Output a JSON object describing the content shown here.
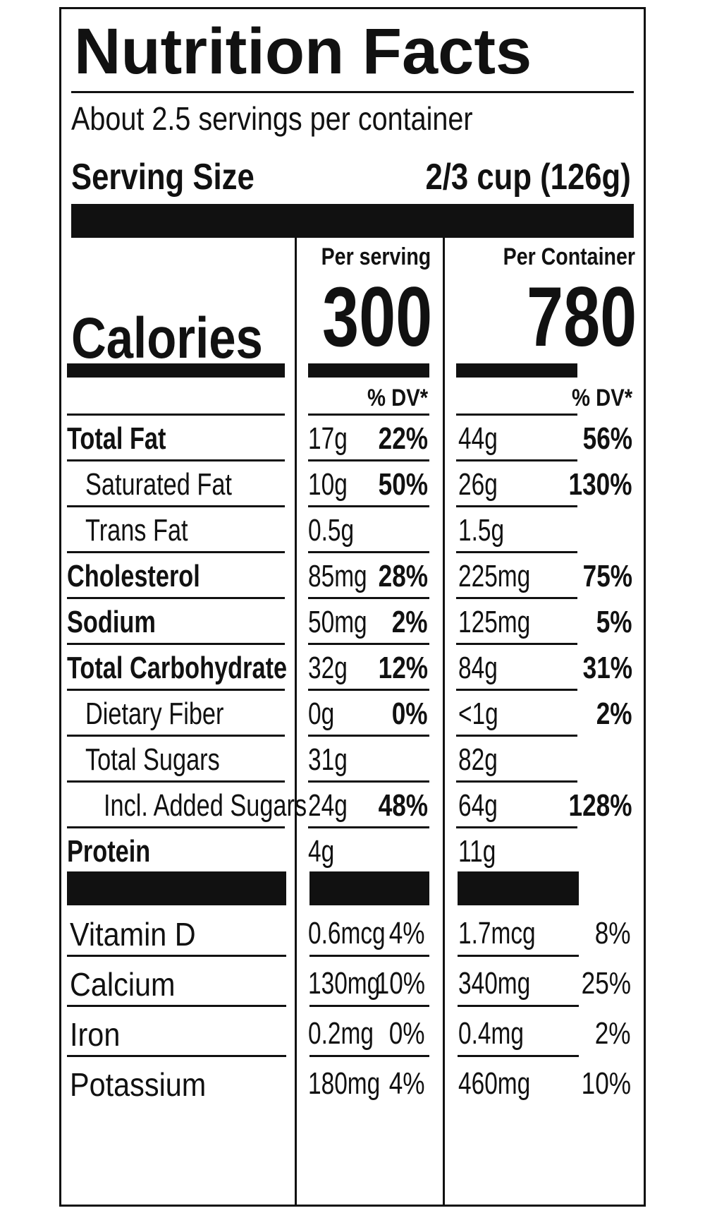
{
  "title": "Nutrition Facts",
  "servings_per_container": "About 2.5 servings per container",
  "serving_size": {
    "label": "Serving Size",
    "value": "2/3 cup (126g)"
  },
  "columns": {
    "per_serving": "Per serving",
    "per_container": "Per Container",
    "dv": "% DV*"
  },
  "calories": {
    "label": "Calories",
    "per_serving": "300",
    "per_container": "780"
  },
  "nutrients": [
    {
      "label": "Total Fat",
      "bold": true,
      "indent": 0,
      "serv_amt": "17g",
      "serv_dv": "22%",
      "cont_amt": "44g",
      "cont_dv": "56%"
    },
    {
      "label": "Saturated Fat",
      "bold": false,
      "indent": 1,
      "serv_amt": "10g",
      "serv_dv": "50%",
      "cont_amt": "26g",
      "cont_dv": "130%"
    },
    {
      "label": "Trans Fat",
      "bold": false,
      "indent": 1,
      "serv_amt": "0.5g",
      "serv_dv": "",
      "cont_amt": "1.5g",
      "cont_dv": ""
    },
    {
      "label": "Cholesterol",
      "bold": true,
      "indent": 0,
      "serv_amt": "85mg",
      "serv_dv": "28%",
      "cont_amt": "225mg",
      "cont_dv": "75%"
    },
    {
      "label": "Sodium",
      "bold": true,
      "indent": 0,
      "serv_amt": "50mg",
      "serv_dv": "2%",
      "cont_amt": "125mg",
      "cont_dv": "5%"
    },
    {
      "label": "Total Carbohydrate",
      "bold": true,
      "indent": 0,
      "serv_amt": "32g",
      "serv_dv": "12%",
      "cont_amt": "84g",
      "cont_dv": "31%"
    },
    {
      "label": "Dietary Fiber",
      "bold": false,
      "indent": 1,
      "serv_amt": "0g",
      "serv_dv": "0%",
      "cont_amt": "<1g",
      "cont_dv": "2%"
    },
    {
      "label": "Total Sugars",
      "bold": false,
      "indent": 1,
      "serv_amt": "31g",
      "serv_dv": "",
      "cont_amt": "82g",
      "cont_dv": ""
    },
    {
      "label": "Incl. Added Sugars",
      "bold": false,
      "indent": 2,
      "serv_amt": "24g",
      "serv_dv": "48%",
      "cont_amt": "64g",
      "cont_dv": "128%"
    },
    {
      "label": "Protein",
      "bold": true,
      "indent": 0,
      "serv_amt": "4g",
      "serv_dv": "",
      "cont_amt": "11g",
      "cont_dv": ""
    }
  ],
  "vitamins": [
    {
      "label": "Vitamin D",
      "serv_amt": "0.6mcg",
      "serv_dv": "4%",
      "cont_amt": "1.7mcg",
      "cont_dv": "8%"
    },
    {
      "label": "Calcium",
      "serv_amt": "130mg",
      "serv_dv": "10%",
      "cont_amt": "340mg",
      "cont_dv": "25%"
    },
    {
      "label": "Iron",
      "serv_amt": "0.2mg",
      "serv_dv": "0%",
      "cont_amt": "0.4mg",
      "cont_dv": "2%"
    },
    {
      "label": "Potassium",
      "serv_amt": "180mg",
      "serv_dv": "4%",
      "cont_amt": "460mg",
      "cont_dv": "10%"
    }
  ]
}
